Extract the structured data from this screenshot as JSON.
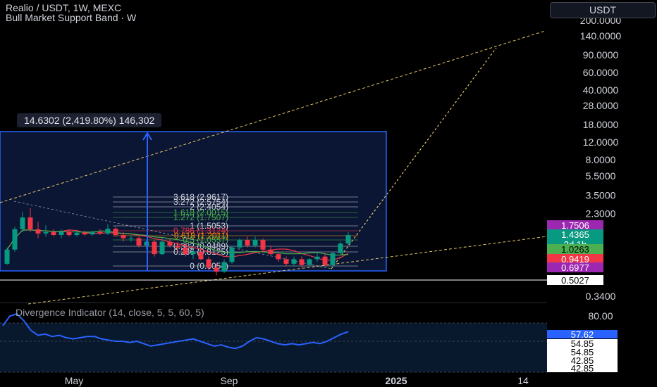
{
  "header": {
    "symbol_line": "Realio / USDT, 1W, MEXC",
    "indicator_line": "Bull Market Support Band · W"
  },
  "currency_button": "USDT",
  "measure_label": "14.6302 (2,419.80%) 146,302",
  "oscillator": {
    "title": "Divergence Indicator (14, close, 5, 5, 60, 5)",
    "axis_labels": [
      "80.00"
    ],
    "tags": [
      {
        "text": "57.62",
        "bg": "#2962ff",
        "fg": "#ffffff"
      },
      {
        "text": "54.85",
        "bg": "#ffffff",
        "fg": "#000000"
      },
      {
        "text": "54.85",
        "bg": "#ffffff",
        "fg": "#000000"
      },
      {
        "text": "42.85",
        "bg": "#ffffff",
        "fg": "#000000"
      },
      {
        "text": "42.85",
        "bg": "#ffffff",
        "fg": "#000000"
      }
    ],
    "values": [
      68,
      76,
      78,
      72,
      64,
      60,
      61,
      59,
      60,
      58,
      57,
      58,
      59,
      59,
      57,
      56,
      55,
      55,
      54,
      55,
      53,
      51,
      52,
      53,
      54,
      55,
      56,
      57,
      55,
      53,
      51,
      52,
      50,
      49,
      51,
      55,
      58,
      57,
      55,
      53,
      52,
      53,
      52,
      53,
      54,
      53,
      55,
      58,
      61,
      63
    ]
  },
  "chart_data": {
    "type": "candlestick",
    "title": "Realio / USDT, 1W, MEXC",
    "yscale": "log",
    "price_axis_labels": [
      "200.0000",
      "140.0000",
      "90.0000",
      "60.0000",
      "40.0000",
      "28.0000",
      "18.0000",
      "12.0000",
      "8.0000",
      "5.5000",
      "3.5000",
      "2.3000",
      "0.3400"
    ],
    "time_axis_labels": [
      "May",
      "Sep",
      "2025",
      "14"
    ],
    "price_tags": [
      {
        "text": "1.7506",
        "bg": "#9c27b0",
        "fg": "#ffffff"
      },
      {
        "text": "1.4365",
        "bg": "#089981",
        "fg": "#ffffff"
      },
      {
        "text": "2d 1h",
        "bg": "#089981",
        "fg": "#ffffff"
      },
      {
        "text": "1.0263",
        "bg": "#4caf50",
        "fg": "#000000"
      },
      {
        "text": "0.9419",
        "bg": "#f23645",
        "fg": "#ffffff"
      },
      {
        "text": "0.6977",
        "bg": "#9c27b0",
        "fg": "#ffffff"
      },
      {
        "text": "0.5027",
        "bg": "#ffffff",
        "fg": "#000000"
      }
    ],
    "fib_levels": [
      {
        "label": "3.618 (2.9617)",
        "color": "#d1d4dc"
      },
      {
        "label": "3.272 (2.5754)",
        "color": "#d1d4dc"
      },
      {
        "label": "2 (2.4054)",
        "color": "#d1d4dc"
      },
      {
        "label": "1.618 (2.0015)",
        "color": "#4caf50"
      },
      {
        "label": "1.272 (1.7507)",
        "color": "#4caf50"
      },
      {
        "label": "1 (1.5053)",
        "color": "#d1d4dc"
      },
      {
        "label": "0.786 (1.3124)",
        "color": "#f23645"
      },
      {
        "label": "0.618 (1.2011)",
        "color": "#ff9800"
      },
      {
        "label": "0.5 (1.0557)",
        "color": "#4caf50"
      },
      {
        "label": "0.382 (0.9489)",
        "color": "#d1d4dc"
      },
      {
        "label": "0.236 (0.8125)",
        "color": "#d1d4dc"
      },
      {
        "label": "0 (0.6054)",
        "color": "#d1d4dc"
      }
    ],
    "candles": [
      {
        "o": 0.72,
        "h": 1.05,
        "l": 0.7,
        "c": 1.0
      },
      {
        "o": 1.0,
        "h": 1.7,
        "l": 0.95,
        "c": 1.6
      },
      {
        "o": 1.6,
        "h": 2.4,
        "l": 1.5,
        "c": 2.1
      },
      {
        "o": 2.1,
        "h": 2.6,
        "l": 1.5,
        "c": 1.6
      },
      {
        "o": 1.6,
        "h": 1.9,
        "l": 1.3,
        "c": 1.45
      },
      {
        "o": 1.45,
        "h": 1.75,
        "l": 1.35,
        "c": 1.5
      },
      {
        "o": 1.5,
        "h": 1.6,
        "l": 1.35,
        "c": 1.4
      },
      {
        "o": 1.4,
        "h": 1.6,
        "l": 1.3,
        "c": 1.52
      },
      {
        "o": 1.52,
        "h": 1.6,
        "l": 1.35,
        "c": 1.4
      },
      {
        "o": 1.4,
        "h": 1.55,
        "l": 1.35,
        "c": 1.47
      },
      {
        "o": 1.47,
        "h": 1.55,
        "l": 1.38,
        "c": 1.42
      },
      {
        "o": 1.42,
        "h": 1.55,
        "l": 1.38,
        "c": 1.5
      },
      {
        "o": 1.5,
        "h": 1.6,
        "l": 1.4,
        "c": 1.45
      },
      {
        "o": 1.45,
        "h": 1.8,
        "l": 1.4,
        "c": 1.62
      },
      {
        "o": 1.62,
        "h": 1.7,
        "l": 1.35,
        "c": 1.4
      },
      {
        "o": 1.4,
        "h": 1.5,
        "l": 1.2,
        "c": 1.3
      },
      {
        "o": 1.3,
        "h": 1.4,
        "l": 1.2,
        "c": 1.3
      },
      {
        "o": 1.3,
        "h": 1.35,
        "l": 1.05,
        "c": 1.1
      },
      {
        "o": 1.1,
        "h": 1.25,
        "l": 1.0,
        "c": 1.2
      },
      {
        "o": 1.2,
        "h": 1.25,
        "l": 0.85,
        "c": 0.9
      },
      {
        "o": 0.9,
        "h": 1.3,
        "l": 0.88,
        "c": 1.2
      },
      {
        "o": 1.2,
        "h": 1.3,
        "l": 1.05,
        "c": 1.1
      },
      {
        "o": 1.1,
        "h": 1.2,
        "l": 0.95,
        "c": 1.05
      },
      {
        "o": 1.05,
        "h": 1.15,
        "l": 0.85,
        "c": 0.9
      },
      {
        "o": 0.9,
        "h": 1.0,
        "l": 0.8,
        "c": 0.95
      },
      {
        "o": 0.95,
        "h": 1.0,
        "l": 0.78,
        "c": 0.8
      },
      {
        "o": 0.8,
        "h": 0.85,
        "l": 0.62,
        "c": 0.66
      },
      {
        "o": 0.66,
        "h": 0.72,
        "l": 0.55,
        "c": 0.6
      },
      {
        "o": 0.6,
        "h": 0.8,
        "l": 0.58,
        "c": 0.75
      },
      {
        "o": 0.75,
        "h": 1.1,
        "l": 0.72,
        "c": 1.05
      },
      {
        "o": 1.05,
        "h": 1.3,
        "l": 1.0,
        "c": 1.25
      },
      {
        "o": 1.25,
        "h": 1.35,
        "l": 1.05,
        "c": 1.1
      },
      {
        "o": 1.1,
        "h": 1.35,
        "l": 1.05,
        "c": 1.25
      },
      {
        "o": 1.25,
        "h": 1.3,
        "l": 0.95,
        "c": 1.0
      },
      {
        "o": 1.0,
        "h": 1.1,
        "l": 0.88,
        "c": 0.9
      },
      {
        "o": 0.9,
        "h": 0.95,
        "l": 0.75,
        "c": 0.8
      },
      {
        "o": 0.8,
        "h": 0.85,
        "l": 0.68,
        "c": 0.72
      },
      {
        "o": 0.72,
        "h": 0.85,
        "l": 0.68,
        "c": 0.8
      },
      {
        "o": 0.8,
        "h": 0.85,
        "l": 0.66,
        "c": 0.7
      },
      {
        "o": 0.7,
        "h": 0.82,
        "l": 0.68,
        "c": 0.8
      },
      {
        "o": 0.8,
        "h": 0.95,
        "l": 0.75,
        "c": 0.85
      },
      {
        "o": 0.85,
        "h": 0.9,
        "l": 0.68,
        "c": 0.7
      },
      {
        "o": 0.7,
        "h": 0.95,
        "l": 0.66,
        "c": 0.92
      },
      {
        "o": 0.92,
        "h": 1.2,
        "l": 0.9,
        "c": 1.15
      },
      {
        "o": 1.15,
        "h": 1.5,
        "l": 1.1,
        "c": 1.4
      }
    ]
  }
}
